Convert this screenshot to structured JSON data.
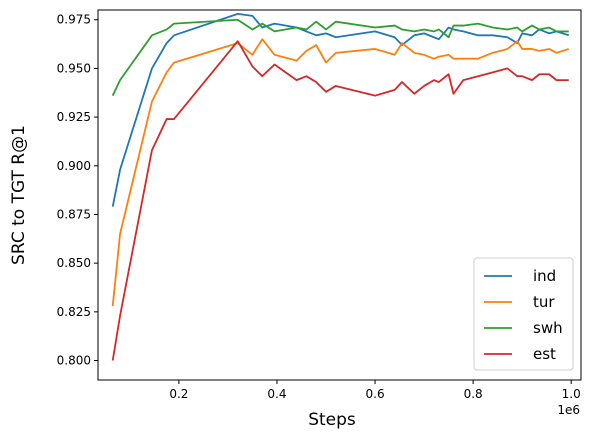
{
  "chart_data": {
    "type": "line",
    "xlabel": "Steps",
    "ylabel": "SRC to TGT R@1",
    "x_offset_label": "1e6",
    "xlim": [
      0.035,
      1.02
    ],
    "ylim": [
      0.79,
      0.98
    ],
    "x_ticks": [
      0.2,
      0.4,
      0.6,
      0.8,
      1.0
    ],
    "x_tick_labels": [
      "0.2",
      "0.4",
      "0.6",
      "0.8",
      "1.0"
    ],
    "y_ticks": [
      0.8,
      0.825,
      0.85,
      0.875,
      0.9,
      0.925,
      0.95,
      0.975
    ],
    "y_tick_labels": [
      "0.800",
      "0.825",
      "0.850",
      "0.875",
      "0.900",
      "0.925",
      "0.950",
      "0.975"
    ],
    "grid": false,
    "legend_position": "lower-right",
    "series": [
      {
        "name": "ind",
        "color": "#1f77b4",
        "x": [
          0.065,
          0.08,
          0.145,
          0.175,
          0.19,
          0.32,
          0.35,
          0.37,
          0.395,
          0.44,
          0.46,
          0.48,
          0.5,
          0.52,
          0.6,
          0.64,
          0.655,
          0.68,
          0.7,
          0.72,
          0.73,
          0.75,
          0.76,
          0.78,
          0.81,
          0.84,
          0.87,
          0.89,
          0.9,
          0.92,
          0.935,
          0.955,
          0.97,
          0.995
        ],
        "y": [
          0.879,
          0.898,
          0.95,
          0.963,
          0.967,
          0.978,
          0.977,
          0.971,
          0.973,
          0.971,
          0.969,
          0.967,
          0.968,
          0.966,
          0.969,
          0.966,
          0.962,
          0.967,
          0.968,
          0.966,
          0.965,
          0.971,
          0.97,
          0.969,
          0.967,
          0.967,
          0.966,
          0.963,
          0.968,
          0.967,
          0.97,
          0.968,
          0.969,
          0.967
        ]
      },
      {
        "name": "tur",
        "color": "#ff7f0e",
        "x": [
          0.065,
          0.08,
          0.145,
          0.175,
          0.19,
          0.32,
          0.35,
          0.37,
          0.395,
          0.44,
          0.46,
          0.48,
          0.5,
          0.52,
          0.6,
          0.64,
          0.655,
          0.68,
          0.7,
          0.72,
          0.73,
          0.75,
          0.76,
          0.78,
          0.81,
          0.84,
          0.87,
          0.89,
          0.9,
          0.92,
          0.935,
          0.955,
          0.97,
          0.995
        ],
        "y": [
          0.828,
          0.865,
          0.933,
          0.948,
          0.953,
          0.963,
          0.957,
          0.965,
          0.957,
          0.954,
          0.959,
          0.962,
          0.953,
          0.958,
          0.96,
          0.957,
          0.963,
          0.958,
          0.957,
          0.955,
          0.956,
          0.957,
          0.955,
          0.955,
          0.955,
          0.958,
          0.96,
          0.964,
          0.96,
          0.96,
          0.959,
          0.96,
          0.958,
          0.96
        ]
      },
      {
        "name": "swh",
        "color": "#2ca02c",
        "x": [
          0.065,
          0.08,
          0.145,
          0.175,
          0.19,
          0.32,
          0.35,
          0.37,
          0.395,
          0.44,
          0.46,
          0.48,
          0.5,
          0.52,
          0.6,
          0.64,
          0.655,
          0.68,
          0.7,
          0.72,
          0.73,
          0.75,
          0.76,
          0.78,
          0.81,
          0.84,
          0.87,
          0.89,
          0.9,
          0.92,
          0.935,
          0.955,
          0.97,
          0.995
        ],
        "y": [
          0.936,
          0.944,
          0.967,
          0.97,
          0.973,
          0.975,
          0.97,
          0.973,
          0.969,
          0.971,
          0.97,
          0.974,
          0.97,
          0.974,
          0.971,
          0.972,
          0.97,
          0.969,
          0.97,
          0.969,
          0.97,
          0.966,
          0.972,
          0.972,
          0.973,
          0.971,
          0.97,
          0.971,
          0.969,
          0.972,
          0.97,
          0.971,
          0.969,
          0.969
        ]
      },
      {
        "name": "est",
        "color": "#d62728",
        "x": [
          0.065,
          0.08,
          0.145,
          0.175,
          0.19,
          0.32,
          0.35,
          0.37,
          0.395,
          0.44,
          0.46,
          0.48,
          0.5,
          0.52,
          0.6,
          0.64,
          0.655,
          0.68,
          0.7,
          0.72,
          0.73,
          0.75,
          0.76,
          0.78,
          0.81,
          0.84,
          0.87,
          0.89,
          0.9,
          0.92,
          0.935,
          0.955,
          0.97,
          0.995
        ],
        "y": [
          0.8,
          0.823,
          0.908,
          0.924,
          0.924,
          0.964,
          0.951,
          0.946,
          0.952,
          0.944,
          0.946,
          0.943,
          0.938,
          0.941,
          0.936,
          0.939,
          0.943,
          0.937,
          0.941,
          0.944,
          0.943,
          0.947,
          0.937,
          0.944,
          0.946,
          0.948,
          0.95,
          0.946,
          0.946,
          0.944,
          0.947,
          0.947,
          0.944,
          0.944
        ]
      }
    ]
  }
}
